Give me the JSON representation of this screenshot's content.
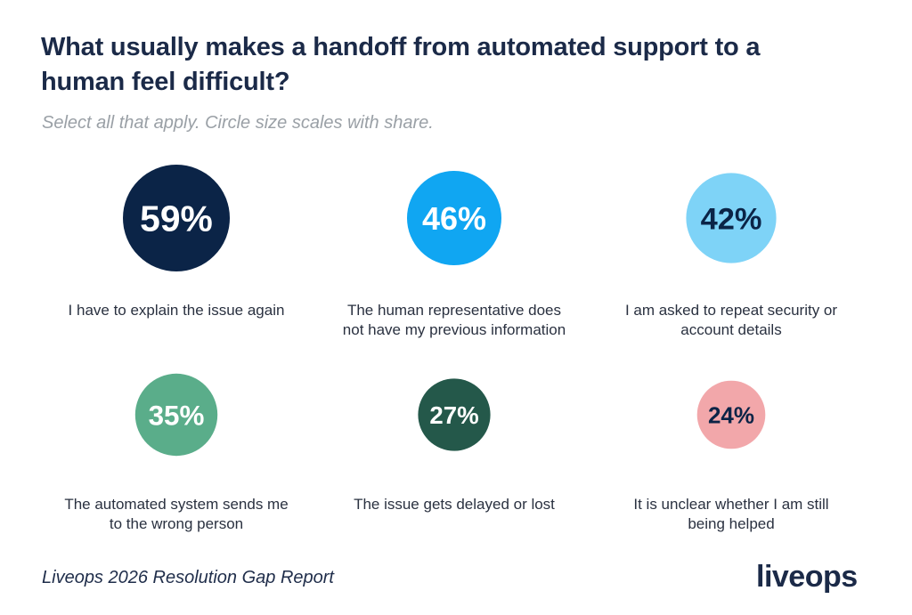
{
  "header": {
    "title": "What usually makes a handoff from automated support to a human feel difficult?",
    "subtitle": "Select all that apply. Circle size scales with share."
  },
  "footer": {
    "source": "Liveops 2026 Resolution Gap Report",
    "logo_text": "liveops"
  },
  "chart_data": {
    "type": "bubble",
    "title": "What usually makes a handoff from automated support to a human feel difficult?",
    "subtitle": "Select all that apply. Circle size scales with share.",
    "unit": "%",
    "items": [
      {
        "label": "I have to explain the issue again",
        "value": 59,
        "value_label": "59%",
        "color": "#0b2447",
        "text_color": "#ffffff"
      },
      {
        "label": "The human representative does not have my previous information",
        "value": 46,
        "value_label": "46%",
        "color": "#10a6f2",
        "text_color": "#ffffff"
      },
      {
        "label": "I am asked to repeat security or account details",
        "value": 42,
        "value_label": "42%",
        "color": "#7ed3f7",
        "text_color": "#0b2447"
      },
      {
        "label": "The automated system sends me to the wrong person",
        "value": 35,
        "value_label": "35%",
        "color": "#5aad8a",
        "text_color": "#ffffff"
      },
      {
        "label": "The issue gets delayed or lost",
        "value": 27,
        "value_label": "27%",
        "color": "#24584a",
        "text_color": "#ffffff"
      },
      {
        "label": "It is unclear whether I am still being helped",
        "value": 24,
        "value_label": "24%",
        "color": "#f2a7aa",
        "text_color": "#0b2447"
      }
    ]
  }
}
